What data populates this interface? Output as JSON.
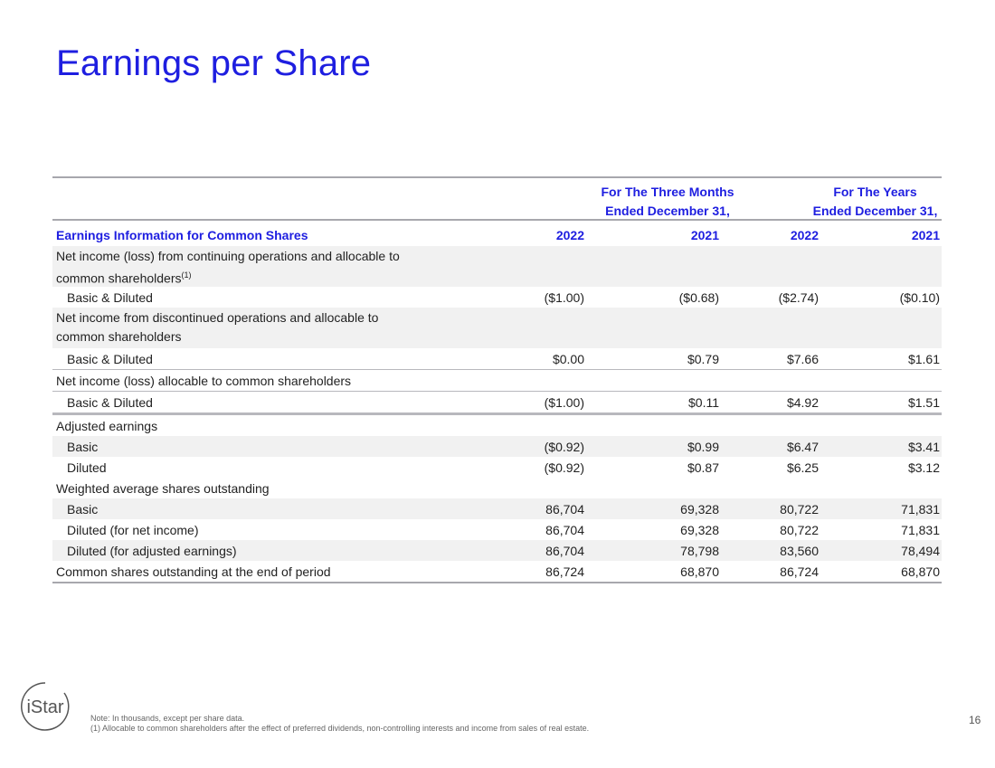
{
  "title": "Earnings per Share",
  "groups": [
    {
      "line1": "For The Three Months",
      "line2": "Ended December 31,"
    },
    {
      "line1": "For The Years",
      "line2": "Ended December 31,"
    }
  ],
  "header": {
    "label": "Earnings Information for Common Shares",
    "cols": [
      "2022",
      "2021",
      "2022",
      "2021"
    ]
  },
  "rows": [
    {
      "label": "Net income (loss) from continuing operations and allocable to",
      "label2": "common shareholders",
      "sup": "(1)",
      "values": [
        "",
        "",
        "",
        ""
      ]
    },
    {
      "label": "Basic & Diluted",
      "values": [
        "($1.00)",
        "($0.68)",
        "($2.74)",
        "($0.10)"
      ]
    },
    {
      "label": "Net income from discontinued operations and allocable to",
      "label2": "common shareholders",
      "values": [
        "",
        "",
        "",
        ""
      ]
    },
    {
      "label": "Basic & Diluted",
      "values": [
        "$0.00",
        "$0.79",
        "$7.66",
        "$1.61"
      ]
    },
    {
      "label": "Net income (loss) allocable to common shareholders",
      "values": [
        "",
        "",
        "",
        ""
      ]
    },
    {
      "label": "Basic & Diluted",
      "values": [
        "($1.00)",
        "$0.11",
        "$4.92",
        "$1.51"
      ]
    },
    {
      "label": "Adjusted earnings",
      "values": [
        "",
        "",
        "",
        ""
      ]
    },
    {
      "label": "Basic",
      "values": [
        "($0.92)",
        "$0.99",
        "$6.47",
        "$3.41"
      ]
    },
    {
      "label": "Diluted",
      "values": [
        "($0.92)",
        "$0.87",
        "$6.25",
        "$3.12"
      ]
    },
    {
      "label": "Weighted average shares outstanding",
      "values": [
        "",
        "",
        "",
        ""
      ]
    },
    {
      "label": "Basic",
      "values": [
        "86,704",
        "69,328",
        "80,722",
        "71,831"
      ]
    },
    {
      "label": "Diluted (for net income)",
      "values": [
        "86,704",
        "69,328",
        "80,722",
        "71,831"
      ]
    },
    {
      "label": "Diluted (for adjusted earnings)",
      "values": [
        "86,704",
        "78,798",
        "83,560",
        "78,494"
      ]
    },
    {
      "label": "Common shares outstanding at the end of period",
      "values": [
        "86,724",
        "68,870",
        "86,724",
        "68,870"
      ]
    }
  ],
  "logo_text": "iStar",
  "notes": {
    "line1": "Note: In thousands, except per share data.",
    "line2": "(1) Allocable to common shareholders after the effect of preferred dividends, non-controlling interests and income from sales of real estate."
  },
  "page_number": "16",
  "colors": {
    "accent": "#1e1ee0",
    "shade": "#f1f1f1",
    "rule": "#a7a7ad"
  }
}
